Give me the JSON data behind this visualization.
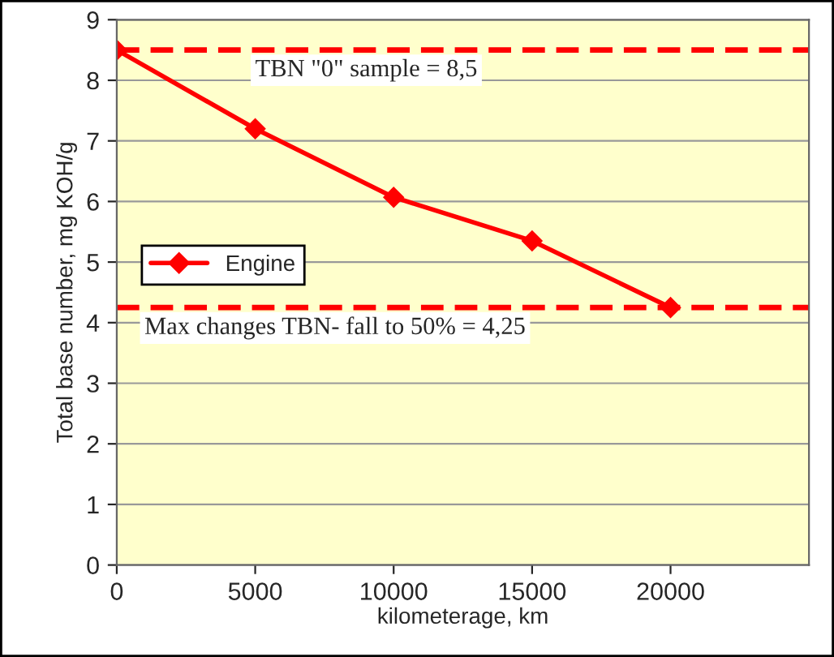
{
  "chart_data": {
    "type": "line",
    "x": [
      0,
      5000,
      10000,
      15000,
      20000
    ],
    "series": [
      {
        "name": "Engine",
        "color": "#ff0000",
        "values": [
          8.5,
          7.2,
          6.07,
          5.35,
          4.25
        ]
      }
    ],
    "xlabel": "kilometerage, km",
    "ylabel": "Total base number, mg KOH/g",
    "xlim": [
      0,
      25000
    ],
    "xticks": [
      0,
      5000,
      10000,
      15000,
      20000
    ],
    "ylim": [
      0,
      9
    ],
    "yticks": [
      0,
      1,
      2,
      3,
      4,
      5,
      6,
      7,
      8,
      9
    ],
    "ref_lines": [
      {
        "axis": "y",
        "value": 8.5,
        "label": "TBN \"0\" sample = 8,5",
        "color": "#ff0000",
        "line_style": "dashed"
      },
      {
        "axis": "y",
        "value": 4.25,
        "label": "Max changes TBN- fall to 50% = 4,25",
        "color": "#ff0000",
        "line_style": "dashed"
      }
    ],
    "grid": "y",
    "legend": "left",
    "marker": "diamond",
    "line_style": "solid"
  }
}
